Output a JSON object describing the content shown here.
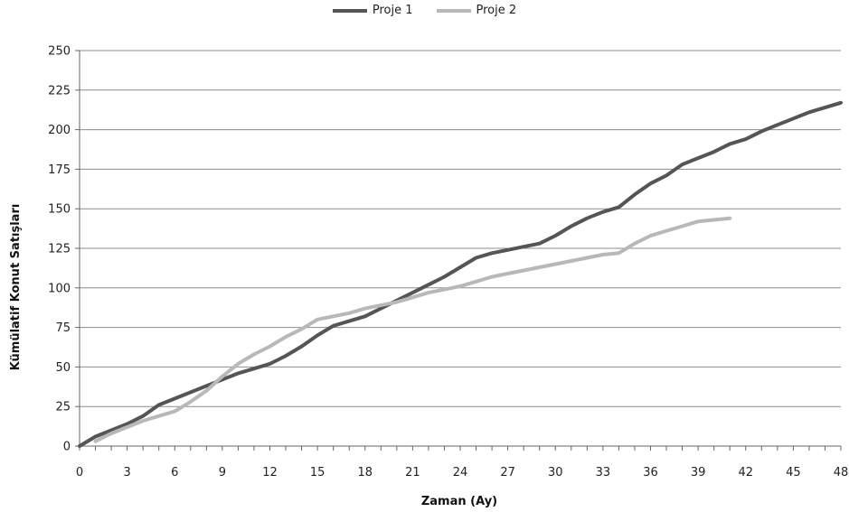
{
  "chart_data": {
    "type": "line",
    "xlabel": "Zaman (Ay)",
    "ylabel": "Kümülatif Konut Satışları",
    "xlim": [
      0,
      48
    ],
    "ylim": [
      0,
      250
    ],
    "x_ticks": [
      "0",
      "3",
      "6",
      "9",
      "12",
      "15",
      "18",
      "21",
      "24",
      "27",
      "30",
      "33",
      "36",
      "39",
      "42",
      "45",
      "48"
    ],
    "y_ticks": [
      "0",
      "25",
      "50",
      "75",
      "100",
      "125",
      "150",
      "175",
      "200",
      "225",
      "250"
    ],
    "grid": true,
    "legend_position": "top",
    "series": [
      {
        "name": "Proje 1",
        "color": "#555555",
        "x": [
          0,
          1,
          2,
          3,
          4,
          5,
          6,
          7,
          8,
          9,
          10,
          11,
          12,
          13,
          14,
          15,
          16,
          17,
          18,
          19,
          20,
          21,
          22,
          23,
          24,
          25,
          26,
          27,
          28,
          29,
          30,
          31,
          32,
          33,
          34,
          35,
          36,
          37,
          38,
          39,
          40,
          41,
          42,
          43,
          44,
          45,
          46,
          47,
          48
        ],
        "values": [
          0,
          6,
          10,
          14,
          19,
          26,
          30,
          34,
          38,
          42,
          46,
          49,
          52,
          57,
          63,
          70,
          76,
          79,
          82,
          87,
          92,
          97,
          102,
          107,
          113,
          119,
          122,
          124,
          126,
          128,
          133,
          139,
          144,
          148,
          151,
          159,
          166,
          171,
          178,
          182,
          186,
          191,
          194,
          199,
          203,
          207,
          211,
          214,
          217
        ]
      },
      {
        "name": "Proje 2",
        "color": "#b8b8b8",
        "x": [
          1,
          2,
          3,
          4,
          5,
          6,
          7,
          8,
          9,
          10,
          11,
          12,
          13,
          14,
          15,
          16,
          17,
          18,
          19,
          20,
          21,
          22,
          23,
          24,
          25,
          26,
          27,
          28,
          29,
          30,
          31,
          32,
          33,
          34,
          35,
          36,
          37,
          38,
          39,
          40,
          41
        ],
        "values": [
          3,
          8,
          12,
          16,
          19,
          22,
          28,
          35,
          44,
          52,
          58,
          63,
          69,
          74,
          80,
          82,
          84,
          87,
          89,
          91,
          94,
          97,
          99,
          101,
          104,
          107,
          109,
          111,
          113,
          115,
          117,
          119,
          121,
          122,
          128,
          133,
          136,
          139,
          142,
          143,
          144
        ]
      }
    ]
  }
}
